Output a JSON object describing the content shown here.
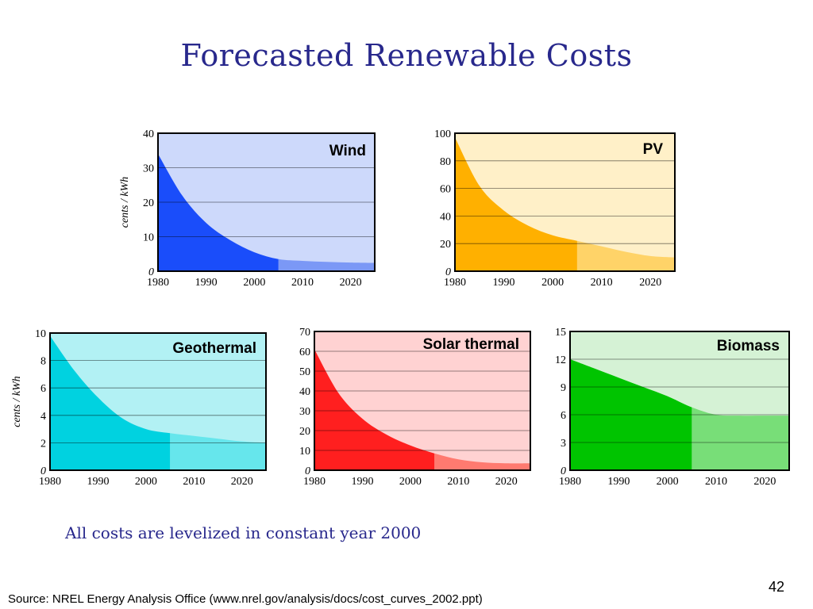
{
  "slide": {
    "title": "Forecasted  Renewable  Costs",
    "note": "All costs are levelized in constant year 2000",
    "source": "Source: NREL Energy Analysis Office (www.nrel.gov/analysis/docs/cost_curves_2002.ppt)",
    "page_number": "42"
  },
  "chart_data": [
    {
      "type": "area",
      "title": "Wind",
      "ylabel": "cents / kWh",
      "x": [
        1980,
        1985,
        1990,
        1995,
        2000,
        2005,
        2010,
        2015,
        2020,
        2025
      ],
      "values": [
        34,
        22,
        14,
        9,
        5.5,
        3.5,
        3.0,
        2.7,
        2.5,
        2.4
      ],
      "forecast_start": 2005,
      "xlim": [
        1980,
        2025
      ],
      "ylim": [
        0,
        40
      ],
      "xticks": [
        1980,
        1990,
        2000,
        2010,
        2020
      ],
      "yticks": [
        0,
        10,
        20,
        30,
        40
      ],
      "ytick_labels": [
        "0",
        "10",
        "20",
        "30",
        "40"
      ],
      "colors": {
        "background": "#cdd9fb",
        "past": "#1a4dfa",
        "future": "#7b98f6"
      }
    },
    {
      "type": "area",
      "title": "PV",
      "ylabel": "",
      "x": [
        1980,
        1985,
        1990,
        1995,
        2000,
        2005,
        2010,
        2015,
        2020,
        2025
      ],
      "values": [
        97,
        62,
        44,
        33,
        26,
        22,
        18,
        14,
        11,
        10
      ],
      "forecast_start": 2005,
      "xlim": [
        1980,
        2025
      ],
      "ylim": [
        0,
        100
      ],
      "xticks": [
        1980,
        1990,
        2000,
        2010,
        2020
      ],
      "yticks": [
        0,
        20,
        40,
        60,
        80,
        100
      ],
      "ytick_labels": [
        "0",
        "20",
        "40",
        "60",
        "80",
        "100"
      ],
      "colors": {
        "background": "#fff0c8",
        "past": "#ffb000",
        "future": "#ffd368"
      }
    },
    {
      "type": "area",
      "title": "Geothermal",
      "ylabel": "cents / kWh",
      "x": [
        1980,
        1985,
        1990,
        1995,
        2000,
        2005,
        2010,
        2015,
        2020,
        2025
      ],
      "values": [
        9.8,
        7.3,
        5.3,
        3.8,
        3.0,
        2.7,
        2.5,
        2.3,
        2.1,
        2.0
      ],
      "forecast_start": 2005,
      "xlim": [
        1980,
        2025
      ],
      "ylim": [
        0,
        10
      ],
      "xticks": [
        1980,
        1990,
        2000,
        2010,
        2020
      ],
      "yticks": [
        0,
        2,
        4,
        6,
        8,
        10
      ],
      "ytick_labels": [
        "0",
        "2",
        "4",
        "6",
        "8",
        "10"
      ],
      "colors": {
        "background": "#b2f1f4",
        "past": "#00d2e0",
        "future": "#66e6ec"
      }
    },
    {
      "type": "area",
      "title": "Solar thermal",
      "ylabel": "",
      "x": [
        1980,
        1985,
        1990,
        1995,
        2000,
        2005,
        2010,
        2015,
        2020,
        2025
      ],
      "values": [
        61,
        39,
        26,
        18,
        12.5,
        8.5,
        5.5,
        4.0,
        3.5,
        3.5
      ],
      "forecast_start": 2005,
      "xlim": [
        1980,
        2025
      ],
      "ylim": [
        0,
        70
      ],
      "xticks": [
        1980,
        1990,
        2000,
        2010,
        2020
      ],
      "yticks": [
        0,
        10,
        20,
        30,
        40,
        50,
        60,
        70
      ],
      "ytick_labels": [
        "0",
        "10",
        "20",
        "30",
        "40",
        "50",
        "60",
        "70"
      ],
      "colors": {
        "background": "#ffd2d2",
        "past": "#ff1f1f",
        "future": "#ff7a70"
      }
    },
    {
      "type": "area",
      "title": "Biomass",
      "ylabel": "",
      "x": [
        1980,
        1985,
        1990,
        1995,
        2000,
        2005,
        2010,
        2015,
        2020,
        2025
      ],
      "values": [
        12.0,
        11.0,
        10.0,
        9.0,
        8.0,
        6.8,
        6.0,
        5.9,
        5.9,
        5.9
      ],
      "forecast_start": 2005,
      "xlim": [
        1980,
        2025
      ],
      "ylim": [
        0,
        15
      ],
      "xticks": [
        1980,
        1990,
        2000,
        2010,
        2020
      ],
      "yticks": [
        0,
        3,
        6,
        9,
        12,
        15
      ],
      "ytick_labels": [
        "0",
        "3",
        "6",
        "9",
        "12",
        "15"
      ],
      "colors": {
        "background": "#d5f2d5",
        "past": "#00c400",
        "future": "#78de78"
      }
    }
  ]
}
